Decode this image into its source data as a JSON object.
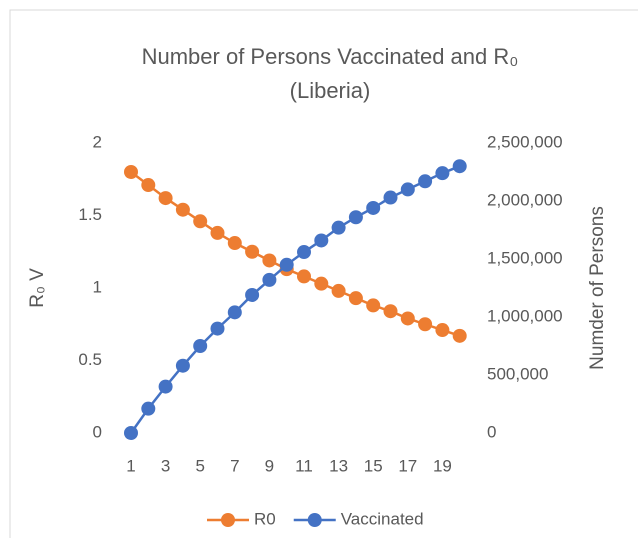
{
  "chart_data": {
    "type": "line",
    "title": "Number of Persons Vaccinated and R₀ (Liberia)",
    "y_label": "R₀ V",
    "y2_label": "Numder of Persons",
    "categories": [
      "1",
      null,
      "3",
      null,
      "5",
      null,
      "7",
      null,
      "9",
      null,
      "11",
      null,
      "13",
      null,
      "15",
      null,
      "17",
      null,
      "19",
      null
    ],
    "series": [
      {
        "name": "R0",
        "color": "#ed7d31",
        "values": [
          1.8,
          1.71,
          1.62,
          1.54,
          1.46,
          1.38,
          1.31,
          1.25,
          1.19,
          1.13,
          1.08,
          1.03,
          0.98,
          0.93,
          0.88,
          0.84,
          0.79,
          0.75,
          0.71,
          0.67
        ]
      },
      {
        "name": "Vaccinated",
        "color": "#4472c4",
        "axis": "y2",
        "values": [
          0,
          210000,
          400000,
          580000,
          750000,
          900000,
          1040000,
          1190000,
          1320000,
          1450000,
          1560000,
          1660000,
          1770000,
          1860000,
          1940000,
          2030000,
          2100000,
          2170000,
          2240000,
          2300000
        ]
      }
    ],
    "ylim": [
      0,
      2
    ],
    "yticks": [
      0,
      0.5,
      1,
      1.5,
      2
    ],
    "y2lim": [
      0,
      2500000
    ],
    "y2ticks": [
      0,
      {
        "value": 500000,
        "label": "500,000"
      },
      {
        "value": 1000000,
        "label": "1,000,000"
      },
      {
        "value": 1500000,
        "label": "1,500,000"
      },
      {
        "value": 2000000,
        "label": "2,000,000"
      },
      {
        "value": 2500000,
        "label": "2,500,000"
      }
    ],
    "legend": "bottom"
  }
}
